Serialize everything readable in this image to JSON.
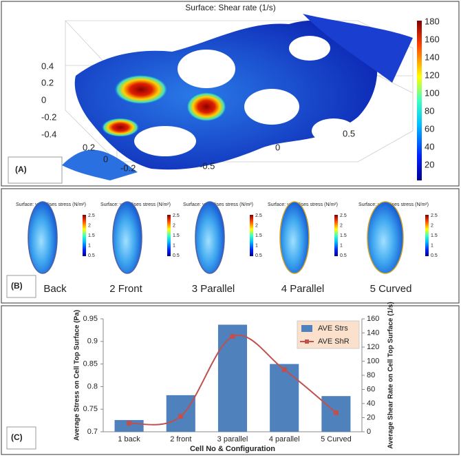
{
  "panel_a": {
    "label": "(A)",
    "title": "Surface: Shear rate (1/s)",
    "colorbar_ticks": [
      "180",
      "160",
      "140",
      "120",
      "100",
      "80",
      "60",
      "40",
      "20"
    ],
    "z_labels": [
      "0.4",
      "0.2",
      "0",
      "-0.2",
      "-0.4"
    ],
    "x_labels": [
      "0.2",
      "0",
      "-0.2",
      "-0.5"
    ],
    "y_labels": [
      "0.5",
      "0"
    ]
  },
  "panel_b": {
    "label": "(B)",
    "items": [
      {
        "title": "Surface: von Mises stress (N/m²)",
        "colorbar_ticks": [
          "2.5",
          "2",
          "1.5",
          "1",
          "0.5"
        ],
        "caption": "Back"
      },
      {
        "title": "Surface: von Mises stress (N/m²)",
        "colorbar_ticks": [
          "2.5",
          "2",
          "1.5",
          "1",
          "0.5"
        ],
        "caption": "2 Front"
      },
      {
        "title": "Surface: von Mises stress (N/m²)",
        "colorbar_ticks": [
          "2.5",
          "2",
          "1.5",
          "1",
          "0.5"
        ],
        "caption": "3 Parallel"
      },
      {
        "title": "Surface: von Mises stress (N/m²)",
        "colorbar_ticks": [
          "2.5",
          "2",
          "1.5",
          "1",
          "0.5"
        ],
        "caption": "4 Parallel"
      },
      {
        "title": "Surface: von Mises stress (N/m²)",
        "colorbar_ticks": [
          "2.5",
          "2",
          "1.5",
          "1",
          "0.5"
        ],
        "caption": "5 Curved"
      }
    ]
  },
  "chart_data": {
    "type": "bar_line",
    "label": "(C)",
    "x_label": "Cell No & Configuration",
    "y_label": "Average Stress on Cell Top Surface (Pa)",
    "y2_label": "Average Shear Rate on Cell Top Surface (1/s)",
    "categories": [
      "1 back",
      "2 front",
      "3 parallel",
      "4 parallel",
      "5 Curved"
    ],
    "series": [
      {
        "name": "AVE Strs",
        "color": "#4f81bd",
        "type": "bar",
        "values": [
          0.726,
          0.781,
          0.937,
          0.85,
          0.779
        ]
      },
      {
        "name": "AVE ShR",
        "color": "#c0504d",
        "type": "line",
        "axis": "y2",
        "values": [
          12,
          22,
          135,
          88,
          27
        ]
      }
    ],
    "ylim": [
      0.7,
      0.95
    ],
    "yticks": [
      0.7,
      0.75,
      0.8,
      0.85,
      0.9,
      0.95
    ],
    "y2lim": [
      0,
      160
    ],
    "y2ticks": [
      0,
      20,
      40,
      60,
      80,
      100,
      120,
      140,
      160
    ],
    "legend": "upper right"
  }
}
